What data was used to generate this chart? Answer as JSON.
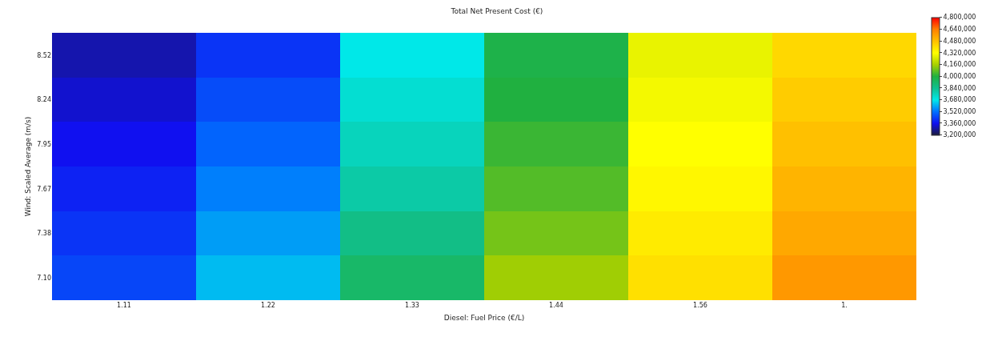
{
  "chart_data": {
    "type": "heatmap",
    "title": "Total Net Present Cost (€)",
    "xlabel": "Diesel: Fuel Price (€/L)",
    "ylabel": "Wind: Scaled Average (m/s)",
    "categories": [
      "1.11",
      "1.22",
      "1.33",
      "1.44",
      "1.56",
      "1."
    ],
    "y_categories": [
      "8.52",
      "8.24",
      "7.95",
      "7.67",
      "7.38",
      "7.10"
    ],
    "cells": [
      [
        3300000,
        3420000,
        3680000,
        3980000,
        4280000,
        4420000
      ],
      [
        3330000,
        3460000,
        3720000,
        4000000,
        4300000,
        4450000
      ],
      [
        3360000,
        3500000,
        3760000,
        4030000,
        4320000,
        4480000
      ],
      [
        3390000,
        3540000,
        3800000,
        4060000,
        4340000,
        4510000
      ],
      [
        3420000,
        3580000,
        3860000,
        4100000,
        4370000,
        4540000
      ],
      [
        3450000,
        3620000,
        3920000,
        4150000,
        4400000,
        4580000
      ]
    ],
    "clim": [
      3200000,
      4800000
    ],
    "cticks": [
      {
        "value": 3200000,
        "label": "3,200,000"
      },
      {
        "value": 3360000,
        "label": "3,360,000"
      },
      {
        "value": 3520000,
        "label": "3,520,000"
      },
      {
        "value": 3680000,
        "label": "3,680,000"
      },
      {
        "value": 3840000,
        "label": "3,840,000"
      },
      {
        "value": 4000000,
        "label": "4,000,000"
      },
      {
        "value": 4160000,
        "label": "4,160,000"
      },
      {
        "value": 4320000,
        "label": "4,320,000"
      },
      {
        "value": 4480000,
        "label": "4,480,000"
      },
      {
        "value": 4640000,
        "label": "4,640,000"
      },
      {
        "value": 4800000,
        "label": "4,800,000"
      }
    ]
  }
}
